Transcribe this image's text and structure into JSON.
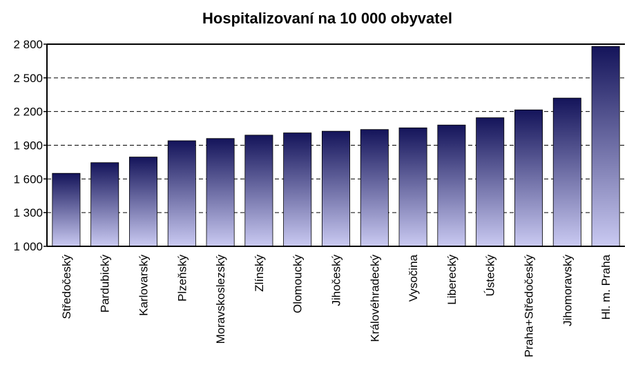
{
  "chart_data": {
    "type": "bar",
    "title": "Hospitalizovaní na 10 000 obyvatel",
    "categories": [
      "Středočeský",
      "Pardubický",
      "Karlovarský",
      "Plzeňský",
      "Moravskoslezský",
      "Zlínský",
      "Olomoucký",
      "Jihočeský",
      "Královéhradecký",
      "Vysočina",
      "Liberecký",
      "Ústecký",
      "Praha+Středočeský",
      "Jihomoravský",
      "Hl. m. Praha"
    ],
    "values": [
      1650,
      1745,
      1795,
      1940,
      1960,
      1990,
      2010,
      2025,
      2040,
      2055,
      2080,
      2145,
      2215,
      2320,
      2780
    ],
    "gradient": [
      "#14145a",
      "#cacaf2"
    ],
    "ylim": [
      1000,
      2800
    ],
    "yticks": [
      {
        "value": 1000,
        "label": "1 000"
      },
      {
        "value": 1300,
        "label": "1 300"
      },
      {
        "value": 1600,
        "label": "1 600"
      },
      {
        "value": 1900,
        "label": "1 900"
      },
      {
        "value": 2200,
        "label": "2 200"
      },
      {
        "value": 2500,
        "label": "2 500"
      },
      {
        "value": 2800,
        "label": "2 800"
      }
    ],
    "grid": true
  }
}
